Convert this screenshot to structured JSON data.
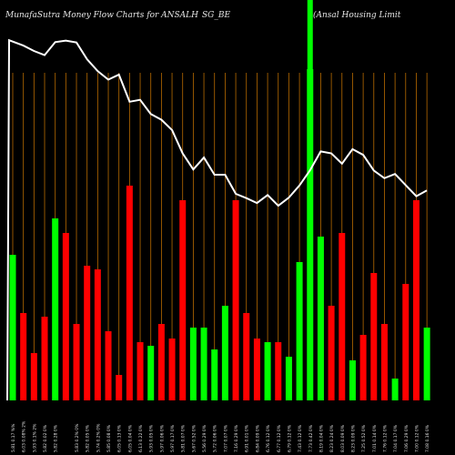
{
  "header": {
    "left": "MunafaSutra  Money Flow  Charts for ANSALH",
    "middle": "SG_BE",
    "right": "(Ansal Housing Limit"
  },
  "chart_data": {
    "type": "bar",
    "bar_values": [
      0.4,
      0.24,
      0.13,
      0.23,
      0.5,
      0.46,
      0.21,
      0.37,
      0.36,
      0.19,
      0.07,
      0.59,
      0.16,
      0.15,
      0.21,
      0.17,
      0.55,
      0.2,
      0.2,
      0.14,
      0.26,
      0.55,
      0.24,
      0.17,
      0.16,
      0.16,
      0.12,
      0.38,
      0.91,
      0.45,
      0.26,
      0.46,
      0.11,
      0.18,
      0.35,
      0.21,
      0.06,
      0.32,
      0.55,
      0.2
    ],
    "bar_colors": [
      "green",
      "red",
      "red",
      "red",
      "green",
      "red",
      "red",
      "red",
      "red",
      "red",
      "red",
      "red",
      "red",
      "green",
      "red",
      "red",
      "red",
      "green",
      "green",
      "green",
      "green",
      "red",
      "red",
      "red",
      "green",
      "red",
      "green",
      "green",
      "green",
      "green",
      "red",
      "red",
      "green",
      "red",
      "red",
      "red",
      "green",
      "red",
      "red",
      "green"
    ],
    "line_values": [
      0.99,
      0.976,
      0.962,
      0.951,
      0.985,
      0.989,
      0.984,
      0.94,
      0.909,
      0.887,
      0.9,
      0.829,
      0.834,
      0.797,
      0.782,
      0.755,
      0.694,
      0.652,
      0.683,
      0.638,
      0.638,
      0.588,
      0.577,
      0.564,
      0.585,
      0.557,
      0.578,
      0.61,
      0.65,
      0.699,
      0.694,
      0.667,
      0.705,
      0.69,
      0.649,
      0.629,
      0.64,
      0.611,
      0.582,
      0.597
    ],
    "x_labels": [
      "5.81 0.17 %%",
      "6.03 0.08% 2%",
      "5.93 0.1% 2%",
      "5.82 0.02 0%",
      "5.82 0.28 0%",
      "",
      "5.83 0.2% 0%",
      "5.82 0.05 0%",
      "5.74 0.2% 0%",
      "5.85 0.08 0%",
      "6.05 0.13 0%",
      "6.05 0.04 0%",
      "6.13 0.22 0%",
      "5.93 0.05 0%",
      "5.97 0.06 0%",
      "5.97 0.17 0%",
      "5.81 0.07 0%",
      "5.67 0.52 0%",
      "5.56 0.29 0%",
      "5.72 0.06 0%",
      "7.07 0.07 0%",
      "7.16 0.29 0%",
      "6.91 0.01 0%",
      "6.84 0.09 0%",
      "6.76 0.12 0%",
      "6.77 0.12 0%",
      "6.79 0.12 0%",
      "7.43 0.12 0%",
      "7.73 0.42 0%",
      "8.19 0.04 0%",
      "8.23 0.24 0%",
      "8.03 0.09 0%",
      "8.23 0.09 0%",
      "7.25 0.52 0%",
      "7.01 0.14 0%",
      "7.76 0.12 0%",
      "7.04 0.17 0%",
      "7.06 0.29 0%",
      "7.00 0.12 0%",
      "7.08 0.16 0%"
    ],
    "colors": {
      "background": "#000000",
      "up": "#00ff00",
      "down": "#ff0000",
      "highlight": "#00ff00",
      "grid": "#b86b00",
      "line": "#ffffff",
      "text": "#e6e6e6"
    },
    "highlight_index": 28,
    "grid": true,
    "legend": "none",
    "ylim": [
      0,
      1
    ]
  }
}
